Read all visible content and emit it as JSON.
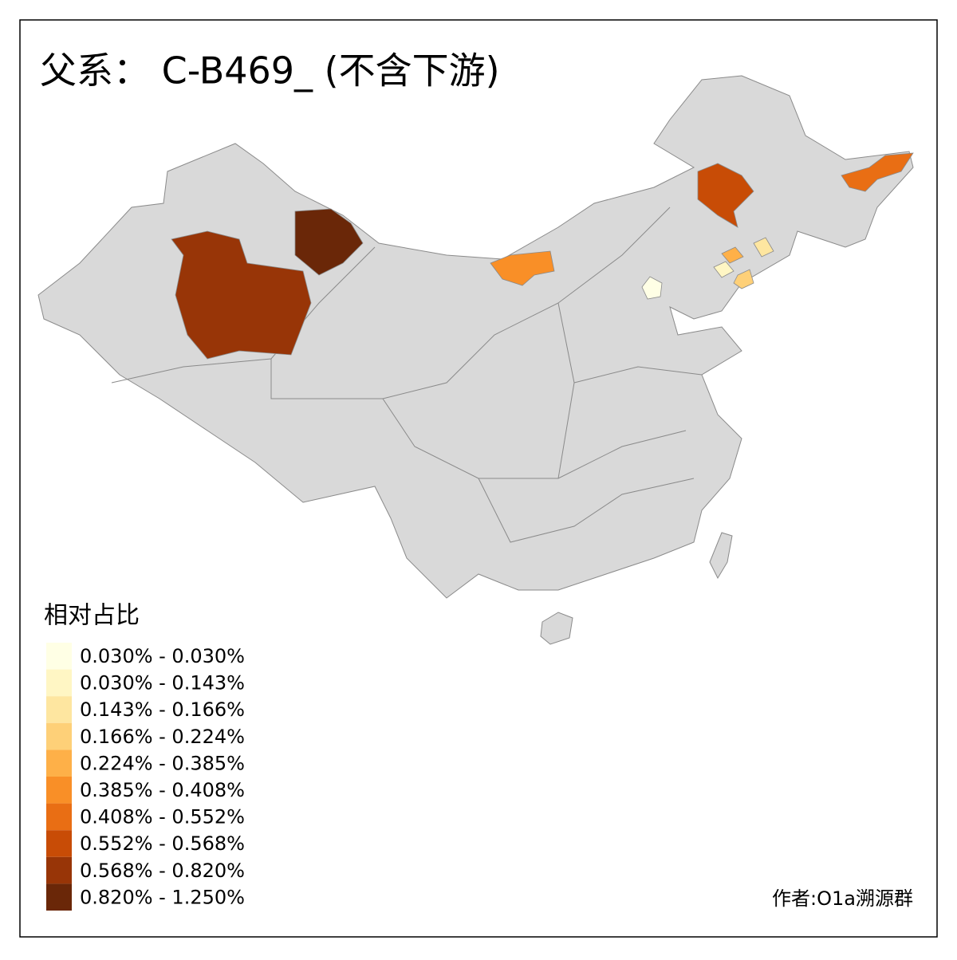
{
  "title": "父系： C-B469_ (不含下游)",
  "legend": {
    "title": "相对占比",
    "items": [
      {
        "label": "0.030% - 0.030%",
        "color": "#ffffe5"
      },
      {
        "label": "0.030% - 0.143%",
        "color": "#fff6c4"
      },
      {
        "label": "0.143% - 0.166%",
        "color": "#fee6a0"
      },
      {
        "label": "0.166% - 0.224%",
        "color": "#fed078"
      },
      {
        "label": "0.224% - 0.385%",
        "color": "#feb048"
      },
      {
        "label": "0.385% - 0.408%",
        "color": "#f98f27"
      },
      {
        "label": "0.408% - 0.552%",
        "color": "#e96e14"
      },
      {
        "label": "0.552% - 0.568%",
        "color": "#c84c06"
      },
      {
        "label": "0.568% - 0.820%",
        "color": "#983507"
      },
      {
        "label": "0.820% - 1.250%",
        "color": "#6a2708"
      }
    ]
  },
  "credit": "作者:O1a溯源群"
}
